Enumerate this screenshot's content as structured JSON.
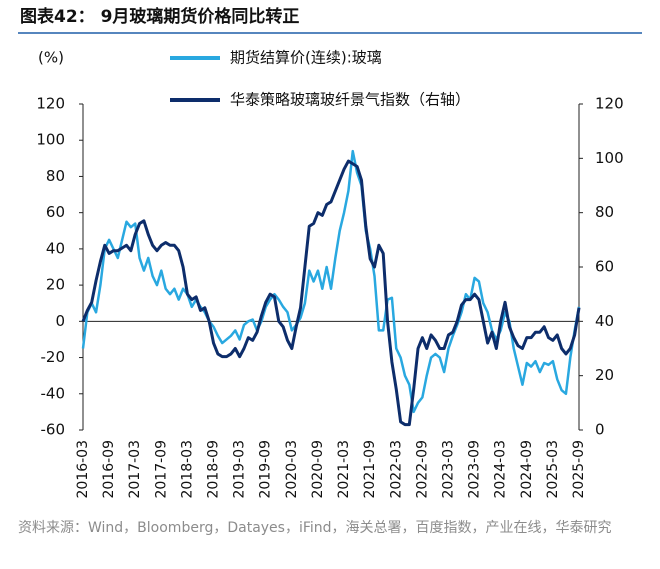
{
  "chart_data": {
    "type": "line",
    "title": "图表42： 9月玻璃期货价格同比转正",
    "y_label": "(%)",
    "source": "资料来源：Wind，Bloomberg，Datayes，iFind，海关总署，百度指数，产业在线，华泰研究",
    "legend": "top",
    "x": [
      "2016-03",
      "2016-04",
      "2016-05",
      "2016-06",
      "2016-07",
      "2016-08",
      "2016-09",
      "2016-10",
      "2016-11",
      "2016-12",
      "2017-01",
      "2017-02",
      "2017-03",
      "2017-04",
      "2017-05",
      "2017-06",
      "2017-07",
      "2017-08",
      "2017-09",
      "2017-10",
      "2017-11",
      "2017-12",
      "2018-01",
      "2018-02",
      "2018-03",
      "2018-04",
      "2018-05",
      "2018-06",
      "2018-07",
      "2018-08",
      "2018-09",
      "2018-10",
      "2018-11",
      "2018-12",
      "2019-01",
      "2019-02",
      "2019-03",
      "2019-04",
      "2019-05",
      "2019-06",
      "2019-07",
      "2019-08",
      "2019-09",
      "2019-10",
      "2019-11",
      "2019-12",
      "2020-01",
      "2020-02",
      "2020-03",
      "2020-04",
      "2020-05",
      "2020-06",
      "2020-07",
      "2020-08",
      "2020-09",
      "2020-10",
      "2020-11",
      "2020-12",
      "2021-01",
      "2021-02",
      "2021-03",
      "2021-04",
      "2021-05",
      "2021-06",
      "2021-07",
      "2021-08",
      "2021-09",
      "2021-10",
      "2021-11",
      "2021-12",
      "2022-01",
      "2022-02",
      "2022-03",
      "2022-04",
      "2022-05",
      "2022-06",
      "2022-07",
      "2022-08",
      "2022-09",
      "2022-10",
      "2022-11",
      "2022-12",
      "2023-01",
      "2023-02",
      "2023-03",
      "2023-04",
      "2023-05",
      "2023-06",
      "2023-07",
      "2023-08",
      "2023-09",
      "2023-10",
      "2023-11",
      "2023-12",
      "2024-01",
      "2024-02",
      "2024-03",
      "2024-04",
      "2024-05",
      "2024-06",
      "2024-07",
      "2024-08",
      "2024-09",
      "2024-10",
      "2024-11",
      "2024-12",
      "2025-01",
      "2025-02",
      "2025-03",
      "2025-04",
      "2025-05",
      "2025-06",
      "2025-07",
      "2025-08",
      "2025-09"
    ],
    "series": [
      {
        "name": "期货结算价(连续):玻璃",
        "color": "#29a8e0",
        "values": [
          -15,
          5,
          10,
          5,
          20,
          40,
          45,
          40,
          35,
          45,
          55,
          52,
          54,
          35,
          28,
          35,
          25,
          20,
          28,
          18,
          15,
          18,
          12,
          18,
          15,
          8,
          12,
          8,
          5,
          0,
          -3,
          -8,
          -12,
          -10,
          -8,
          -5,
          -10,
          -2,
          0,
          1,
          -5,
          0,
          8,
          12,
          15,
          12,
          8,
          5,
          -5,
          -2,
          2,
          10,
          28,
          22,
          28,
          18,
          30,
          18,
          35,
          50,
          60,
          72,
          94,
          82,
          75,
          50,
          40,
          25,
          -5,
          -5,
          12,
          13,
          -15,
          -20,
          -30,
          -35,
          -50,
          -45,
          -42,
          -30,
          -20,
          -18,
          -20,
          -28,
          -15,
          -8,
          -2,
          5,
          15,
          12,
          24,
          22,
          10,
          5,
          -5,
          -10,
          -5,
          5,
          0,
          -15,
          -25,
          -35,
          -23,
          -25,
          -22,
          -28,
          -23,
          -24,
          -22,
          -32,
          -38,
          -40,
          -20,
          -5,
          8
        ]
      },
      {
        "name": "华泰策略玻璃玻纤景气指数（右轴）",
        "color": "#0d2d6b",
        "axis": "y2",
        "values": [
          40,
          44,
          47,
          55,
          62,
          68,
          65,
          66,
          66,
          67,
          68,
          66,
          72,
          76,
          77,
          72,
          68,
          66,
          68,
          69,
          68,
          68,
          66,
          60,
          50,
          48,
          49,
          44,
          45,
          40,
          32,
          28,
          27,
          27,
          28,
          30,
          27,
          30,
          34,
          33,
          36,
          42,
          47,
          50,
          49,
          40,
          38,
          33,
          30,
          38,
          45,
          60,
          75,
          76,
          80,
          79,
          83,
          84,
          88,
          92,
          96,
          99,
          98,
          97,
          92,
          75,
          63,
          60,
          68,
          65,
          40,
          25,
          15,
          3,
          2,
          2,
          15,
          30,
          34,
          30,
          35,
          33,
          30,
          30,
          35,
          36,
          40,
          46,
          48,
          48,
          50,
          48,
          40,
          32,
          36,
          30,
          40,
          47,
          38,
          34,
          31,
          30,
          34,
          34,
          36,
          36,
          38,
          34,
          33,
          35,
          30,
          28,
          30,
          35,
          45
        ]
      }
    ],
    "ylim": [
      -60,
      120
    ],
    "yticks": [
      -60,
      -40,
      -20,
      0,
      20,
      40,
      60,
      80,
      100,
      120
    ],
    "y2lim": [
      0,
      120
    ],
    "y2ticks": [
      0,
      20,
      40,
      60,
      80,
      100,
      120
    ]
  }
}
